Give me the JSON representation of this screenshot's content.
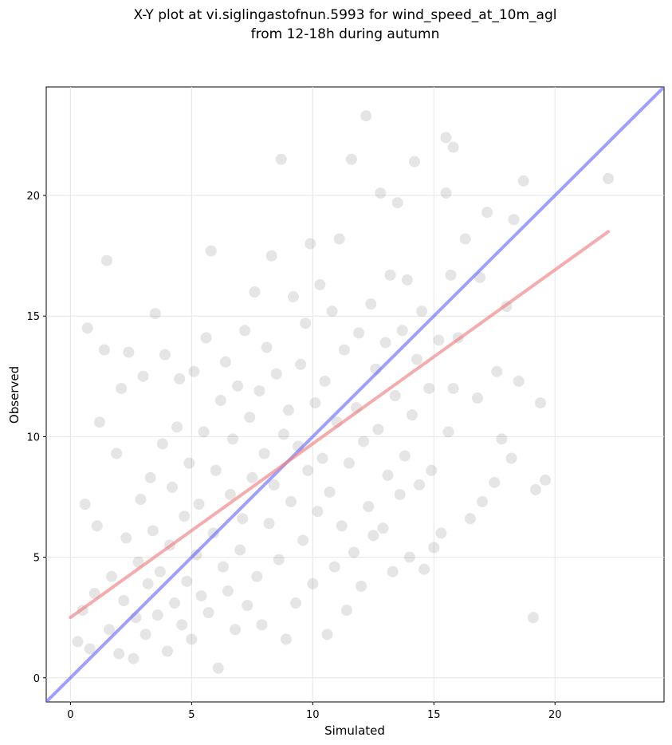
{
  "chart_data": {
    "type": "scatter",
    "title": "X-Y plot at vi.siglingastofnun.5993 for wind_speed_at_10m_agl",
    "subtitle": "from 12-18h during autumn",
    "xlabel": "Simulated",
    "ylabel": "Observed",
    "xlim": [
      -1.0,
      24.5
    ],
    "ylim": [
      -1.0,
      24.5
    ],
    "xticks": [
      "0",
      "5",
      "10",
      "15",
      "20"
    ],
    "yticks": [
      "0",
      "5",
      "10",
      "15",
      "20"
    ],
    "grid": true,
    "point_color": "#333333",
    "point_opacity": 0.13,
    "series": [
      {
        "values": [
          [
            0.3,
            1.5
          ],
          [
            0.5,
            2.8
          ],
          [
            0.6,
            7.2
          ],
          [
            0.7,
            14.5
          ],
          [
            0.8,
            1.2
          ],
          [
            1.0,
            3.5
          ],
          [
            1.1,
            6.3
          ],
          [
            1.2,
            10.6
          ],
          [
            1.4,
            13.6
          ],
          [
            1.5,
            17.3
          ],
          [
            1.6,
            2.0
          ],
          [
            1.7,
            4.2
          ],
          [
            1.9,
            9.3
          ],
          [
            2.0,
            1.0
          ],
          [
            2.1,
            12.0
          ],
          [
            2.2,
            3.2
          ],
          [
            2.3,
            5.8
          ],
          [
            2.4,
            13.5
          ],
          [
            2.6,
            0.8
          ],
          [
            2.7,
            2.5
          ],
          [
            2.8,
            4.8
          ],
          [
            2.9,
            7.4
          ],
          [
            3.0,
            12.5
          ],
          [
            3.1,
            1.8
          ],
          [
            3.2,
            3.9
          ],
          [
            3.3,
            8.3
          ],
          [
            3.4,
            6.1
          ],
          [
            3.5,
            15.1
          ],
          [
            3.6,
            2.6
          ],
          [
            3.7,
            4.4
          ],
          [
            3.8,
            9.7
          ],
          [
            3.9,
            13.4
          ],
          [
            4.0,
            1.1
          ],
          [
            4.1,
            5.5
          ],
          [
            4.2,
            7.9
          ],
          [
            4.3,
            3.1
          ],
          [
            4.4,
            10.4
          ],
          [
            4.5,
            12.4
          ],
          [
            4.6,
            2.2
          ],
          [
            4.7,
            6.7
          ],
          [
            4.8,
            4.0
          ],
          [
            4.9,
            8.9
          ],
          [
            5.0,
            1.6
          ],
          [
            5.1,
            12.7
          ],
          [
            5.2,
            5.1
          ],
          [
            5.3,
            7.2
          ],
          [
            5.4,
            3.4
          ],
          [
            5.5,
            10.2
          ],
          [
            5.6,
            14.1
          ],
          [
            5.7,
            2.7
          ],
          [
            5.8,
            17.7
          ],
          [
            5.9,
            6.0
          ],
          [
            6.0,
            8.6
          ],
          [
            6.1,
            0.4
          ],
          [
            6.2,
            11.5
          ],
          [
            6.3,
            4.6
          ],
          [
            6.4,
            13.1
          ],
          [
            6.5,
            3.6
          ],
          [
            6.6,
            7.6
          ],
          [
            6.7,
            9.9
          ],
          [
            6.8,
            2.0
          ],
          [
            6.9,
            12.1
          ],
          [
            7.0,
            5.3
          ],
          [
            7.1,
            6.6
          ],
          [
            7.2,
            14.4
          ],
          [
            7.3,
            3.0
          ],
          [
            7.4,
            10.8
          ],
          [
            7.5,
            8.3
          ],
          [
            7.6,
            16.0
          ],
          [
            7.7,
            4.2
          ],
          [
            7.8,
            11.9
          ],
          [
            7.9,
            2.2
          ],
          [
            8.0,
            9.3
          ],
          [
            8.1,
            13.7
          ],
          [
            8.2,
            6.4
          ],
          [
            8.3,
            17.5
          ],
          [
            8.4,
            8.0
          ],
          [
            8.5,
            12.6
          ],
          [
            8.6,
            4.9
          ],
          [
            8.7,
            21.5
          ],
          [
            8.8,
            10.1
          ],
          [
            8.9,
            1.6
          ],
          [
            9.0,
            11.1
          ],
          [
            9.1,
            7.3
          ],
          [
            9.2,
            15.8
          ],
          [
            9.3,
            3.1
          ],
          [
            9.4,
            9.6
          ],
          [
            9.5,
            13.0
          ],
          [
            9.6,
            5.7
          ],
          [
            9.7,
            14.7
          ],
          [
            9.8,
            8.6
          ],
          [
            9.9,
            18.0
          ],
          [
            10.0,
            3.9
          ],
          [
            10.1,
            11.4
          ],
          [
            10.2,
            6.9
          ],
          [
            10.3,
            16.3
          ],
          [
            10.4,
            9.1
          ],
          [
            10.5,
            12.3
          ],
          [
            10.6,
            1.8
          ],
          [
            10.7,
            7.7
          ],
          [
            10.8,
            15.2
          ],
          [
            10.9,
            4.6
          ],
          [
            11.0,
            10.6
          ],
          [
            11.1,
            18.2
          ],
          [
            11.2,
            6.3
          ],
          [
            11.3,
            13.6
          ],
          [
            11.4,
            2.8
          ],
          [
            11.5,
            8.9
          ],
          [
            11.6,
            21.5
          ],
          [
            11.7,
            5.2
          ],
          [
            11.8,
            11.2
          ],
          [
            11.9,
            14.3
          ],
          [
            12.0,
            3.8
          ],
          [
            12.1,
            9.8
          ],
          [
            12.2,
            23.3
          ],
          [
            12.3,
            7.1
          ],
          [
            12.4,
            15.5
          ],
          [
            12.5,
            5.9
          ],
          [
            12.6,
            12.8
          ],
          [
            12.7,
            10.3
          ],
          [
            12.8,
            20.1
          ],
          [
            12.9,
            6.2
          ],
          [
            13.0,
            13.9
          ],
          [
            13.1,
            8.4
          ],
          [
            13.2,
            16.7
          ],
          [
            13.3,
            4.4
          ],
          [
            13.4,
            11.7
          ],
          [
            13.5,
            19.7
          ],
          [
            13.6,
            7.6
          ],
          [
            13.7,
            14.4
          ],
          [
            13.8,
            9.2
          ],
          [
            13.9,
            16.5
          ],
          [
            14.0,
            5.0
          ],
          [
            14.1,
            10.9
          ],
          [
            14.2,
            21.4
          ],
          [
            14.3,
            13.2
          ],
          [
            14.4,
            8.0
          ],
          [
            14.5,
            15.2
          ],
          [
            14.6,
            4.5
          ],
          [
            14.8,
            12.0
          ],
          [
            14.9,
            8.6
          ],
          [
            15.0,
            5.4
          ],
          [
            15.2,
            14.0
          ],
          [
            15.3,
            6.0
          ],
          [
            15.5,
            22.4
          ],
          [
            15.6,
            10.2
          ],
          [
            15.7,
            16.7
          ],
          [
            15.8,
            12.0
          ],
          [
            16.0,
            14.1
          ],
          [
            16.3,
            18.2
          ],
          [
            16.5,
            6.6
          ],
          [
            16.8,
            11.6
          ],
          [
            16.9,
            16.6
          ],
          [
            17.0,
            7.3
          ],
          [
            17.2,
            19.3
          ],
          [
            17.5,
            8.1
          ],
          [
            17.6,
            12.7
          ],
          [
            17.8,
            9.9
          ],
          [
            18.0,
            15.4
          ],
          [
            18.2,
            9.1
          ],
          [
            18.3,
            19.0
          ],
          [
            18.5,
            12.3
          ],
          [
            18.7,
            20.6
          ],
          [
            19.1,
            2.5
          ],
          [
            19.2,
            7.8
          ],
          [
            19.4,
            11.4
          ],
          [
            19.6,
            8.2
          ],
          [
            22.2,
            20.7
          ],
          [
            15.5,
            20.1
          ],
          [
            15.8,
            22.0
          ]
        ]
      }
    ],
    "reference_lines": [
      {
        "name": "",
        "color": "#6b6bff",
        "x": [
          -1.0,
          24.5
        ],
        "y": [
          -1.0,
          24.5
        ]
      },
      {
        "name": "",
        "color": "#f08080",
        "x": [
          0.0,
          22.2
        ],
        "y": [
          2.5,
          18.5
        ]
      }
    ]
  }
}
